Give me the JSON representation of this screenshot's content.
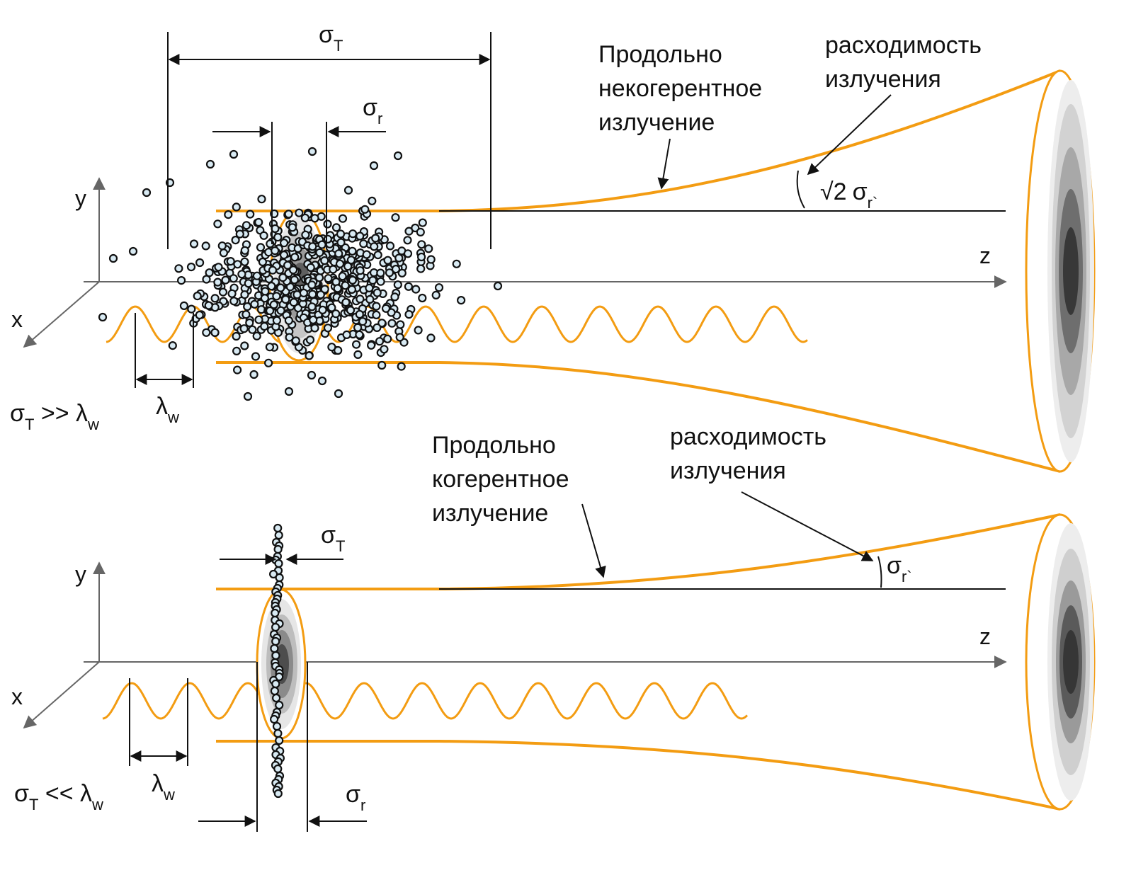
{
  "colors": {
    "beam": "#F39C12",
    "line": "#111111",
    "axis": "#666666",
    "particle_fill": "#d8eaf3",
    "particle_stroke": "#111111"
  },
  "top_panel": {
    "label_incoherent": [
      "Продольно",
      "некогерентное",
      "излучение"
    ],
    "label_divergence": [
      "расходимость",
      "излучения"
    ],
    "sigma_T": {
      "main": "σ",
      "sub": "T"
    },
    "sigma_r": {
      "main": "σ",
      "sub": "r"
    },
    "angle_label": {
      "sqrt": "√2",
      "main": "σ",
      "sub": "r`"
    },
    "axis_x": "x",
    "axis_y": "y",
    "axis_z": "z",
    "lambda": {
      "main": "λ",
      "sub": "w"
    },
    "condition": {
      "a": "σ",
      "a_sub": "T",
      "op": " >> ",
      "b": "λ",
      "b_sub": "w"
    }
  },
  "bottom_panel": {
    "label_coherent": [
      "Продольно",
      "когерентное",
      "излучение"
    ],
    "label_divergence": [
      "расходимость",
      "излучения"
    ],
    "sigma_T": {
      "main": "σ",
      "sub": "T"
    },
    "sigma_r": {
      "main": "σ",
      "sub": "r"
    },
    "angle_label": {
      "main": "σ",
      "sub": "r`"
    },
    "axis_x": "x",
    "axis_y": "y",
    "axis_z": "z",
    "lambda": {
      "main": "λ",
      "sub": "w"
    },
    "condition": {
      "a": "σ",
      "a_sub": "T",
      "op": " << ",
      "b": "λ",
      "b_sub": "w"
    }
  }
}
